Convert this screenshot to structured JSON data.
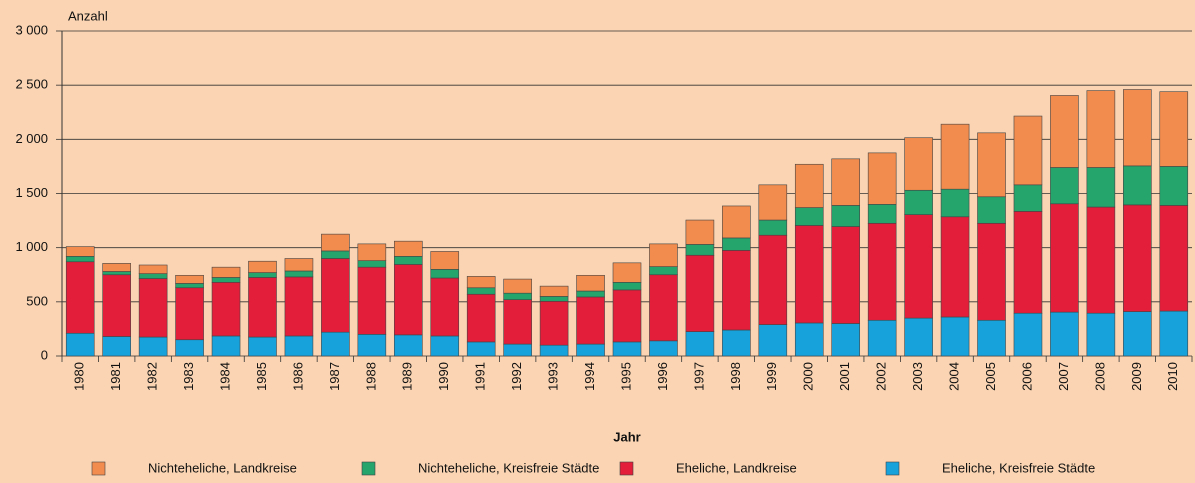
{
  "chart_data": {
    "type": "stacked_bar",
    "y_label": "Anzahl",
    "x_label": "Jahr",
    "categories": [
      "1980",
      "1981",
      "1982",
      "1983",
      "1984",
      "1985",
      "1986",
      "1987",
      "1988",
      "1989",
      "1990",
      "1991",
      "1992",
      "1993",
      "1994",
      "1995",
      "1996",
      "1997",
      "1998",
      "1999",
      "2000",
      "2001",
      "2002",
      "2003",
      "2004",
      "2005",
      "2006",
      "2007",
      "2008",
      "2009",
      "2010"
    ],
    "series": [
      {
        "name": "Nichteheliche, Landkreise",
        "color": "#f28c4e",
        "values": [
          90,
          75,
          80,
          75,
          95,
          105,
          115,
          155,
          155,
          140,
          165,
          105,
          130,
          95,
          145,
          180,
          210,
          225,
          295,
          325,
          400,
          430,
          475,
          485,
          600,
          590,
          635,
          665,
          710,
          705,
          690
        ]
      },
      {
        "name": "Nichteheliche, Kreisfreie Städte",
        "color": "#25a46c",
        "values": [
          50,
          30,
          45,
          40,
          45,
          45,
          55,
          70,
          60,
          75,
          80,
          60,
          60,
          45,
          55,
          70,
          75,
          100,
          115,
          140,
          165,
          195,
          175,
          225,
          255,
          245,
          245,
          335,
          365,
          360,
          360
        ]
      },
      {
        "name": "Eheliche, Landkreise",
        "color": "#e31e3a",
        "values": [
          660,
          570,
          540,
          480,
          495,
          550,
          545,
          680,
          620,
          650,
          535,
          440,
          410,
          405,
          435,
          480,
          610,
          705,
          735,
          825,
          900,
          895,
          895,
          955,
          925,
          895,
          940,
          1000,
          980,
          985,
          975
        ]
      },
      {
        "name": "Eheliche, Kreisfreie Städte",
        "color": "#18a2dc",
        "values": [
          210,
          180,
          175,
          150,
          185,
          175,
          185,
          220,
          200,
          195,
          185,
          130,
          110,
          100,
          110,
          130,
          140,
          225,
          240,
          290,
          305,
          300,
          330,
          350,
          360,
          330,
          395,
          405,
          395,
          410,
          415
        ]
      }
    ],
    "ylim": [
      0,
      3000
    ],
    "yticks": [
      0,
      500,
      {
        "value": 1000,
        "label": "1 000"
      },
      {
        "value": 1500,
        "label": "1 500"
      },
      {
        "value": 2000,
        "label": "2 000"
      },
      {
        "value": 2500,
        "label": "2 500"
      },
      {
        "value": 3000,
        "label": "3 000"
      }
    ],
    "grid": true
  }
}
